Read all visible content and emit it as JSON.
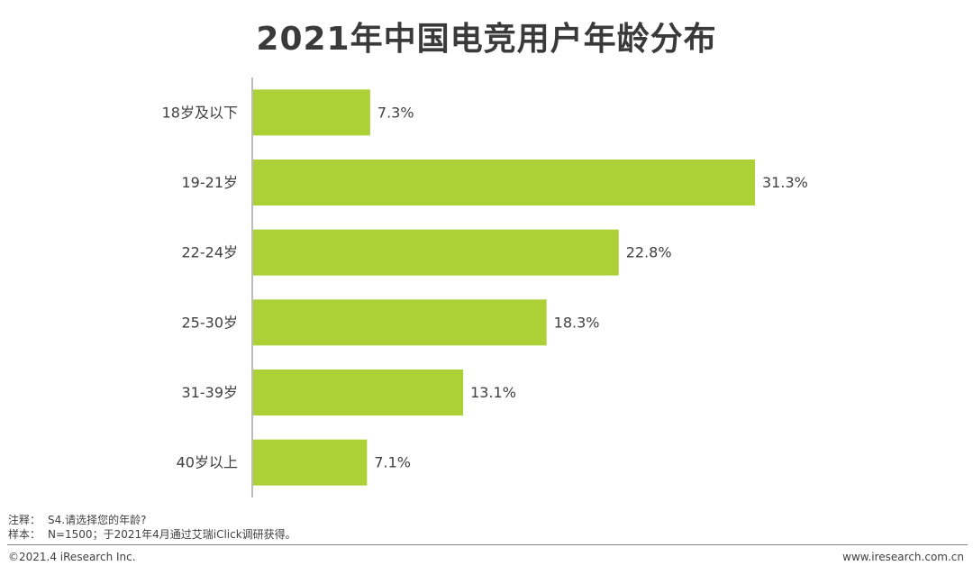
{
  "chart_data": {
    "type": "bar",
    "orientation": "horizontal",
    "title": "2021年中国电竞用户年龄分布",
    "categories": [
      "18岁及以下",
      "19-21岁",
      "22-24岁",
      "25-30岁",
      "31-39岁",
      "40岁以上"
    ],
    "values": [
      7.3,
      31.3,
      22.8,
      18.3,
      13.1,
      7.1
    ],
    "value_labels": [
      "7.3%",
      "31.3%",
      "22.8%",
      "18.3%",
      "13.1%",
      "7.1%"
    ],
    "unit": "%",
    "xlim": [
      0,
      31.3
    ],
    "grid": false,
    "bar_color": "#acd136",
    "axis_color": "#a6a6a6"
  },
  "notes": {
    "note_label": "注释：",
    "note_text": "S4.请选择您的年龄?",
    "sample_label": "样本：",
    "sample_text": "N=1500；于2021年4月通过艾瑞iClick调研获得。"
  },
  "footer": {
    "copyright": "©2021.4 iResearch Inc.",
    "website": "www.iresearch.com.cn"
  }
}
